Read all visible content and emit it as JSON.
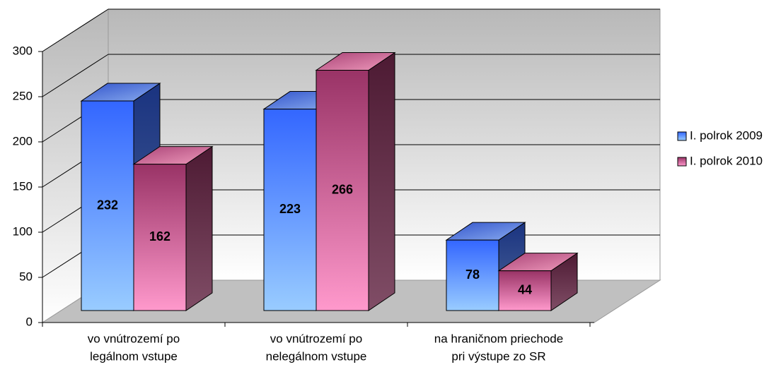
{
  "chart_data": {
    "type": "bar3d",
    "categories": [
      [
        "vo vnútrozemí po",
        "legálnom vstupe"
      ],
      [
        "vo vnútrozemí po",
        "nelegálnom vstupe"
      ],
      [
        "na hraničnom priechode",
        "pri výstupe zo SR"
      ]
    ],
    "series": [
      {
        "name": "I. polrok 2009",
        "color": "#3366ff",
        "values": [
          232,
          223,
          78
        ]
      },
      {
        "name": "I. polrok 2010",
        "color": "#993366",
        "values": [
          162,
          266,
          44
        ]
      }
    ],
    "ylim": [
      0,
      300
    ],
    "yticks": [
      0,
      50,
      100,
      150,
      200,
      250,
      300
    ],
    "grid": true,
    "legend": "right"
  }
}
